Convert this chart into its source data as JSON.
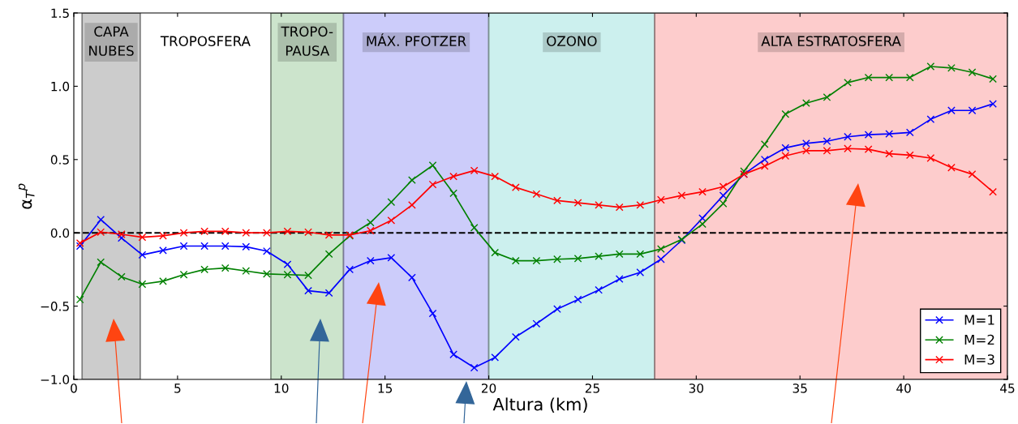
{
  "chart_data": {
    "type": "line",
    "xlabel": "Altura (km)",
    "ylabel": "α$_{T}$$^{p}$",
    "x": [
      0.3,
      1.3,
      2.3,
      3.3,
      4.3,
      5.3,
      6.3,
      7.3,
      8.3,
      9.3,
      10.3,
      11.3,
      12.3,
      13.3,
      14.3,
      15.3,
      16.3,
      17.3,
      18.3,
      19.3,
      20.3,
      21.3,
      22.3,
      23.3,
      24.3,
      25.3,
      26.3,
      27.3,
      28.3,
      29.3,
      30.3,
      31.3,
      32.3,
      33.3,
      34.3,
      35.3,
      36.3,
      37.3,
      38.3,
      39.3,
      40.3,
      41.3,
      42.3,
      43.3,
      44.3
    ],
    "series": [
      {
        "name": "M=1",
        "color": "#0000ff",
        "values": [
          -0.09,
          0.09,
          -0.035,
          -0.15,
          -0.12,
          -0.09,
          -0.09,
          -0.09,
          -0.095,
          -0.125,
          -0.215,
          -0.395,
          -0.41,
          -0.25,
          -0.19,
          -0.17,
          -0.305,
          -0.55,
          -0.83,
          -0.92,
          -0.85,
          -0.71,
          -0.62,
          -0.52,
          -0.455,
          -0.39,
          -0.315,
          -0.27,
          -0.18,
          -0.05,
          0.1,
          0.255,
          0.4,
          0.5,
          0.58,
          0.61,
          0.625,
          0.655,
          0.67,
          0.675,
          0.685,
          0.775,
          0.835,
          0.835,
          0.88
        ]
      },
      {
        "name": "M=2",
        "color": "#008000",
        "values": [
          -0.455,
          -0.2,
          -0.3,
          -0.35,
          -0.33,
          -0.285,
          -0.25,
          -0.24,
          -0.26,
          -0.28,
          -0.285,
          -0.29,
          -0.145,
          -0.02,
          0.07,
          0.21,
          0.36,
          0.46,
          0.27,
          0.035,
          -0.135,
          -0.19,
          -0.19,
          -0.18,
          -0.175,
          -0.16,
          -0.145,
          -0.145,
          -0.11,
          -0.045,
          0.06,
          0.2,
          0.42,
          0.605,
          0.81,
          0.885,
          0.925,
          1.025,
          1.06,
          1.06,
          1.06,
          1.135,
          1.125,
          1.095,
          1.05
        ]
      },
      {
        "name": "M=3",
        "color": "#ff0000",
        "values": [
          -0.07,
          0.005,
          -0.01,
          -0.03,
          -0.02,
          0.0,
          0.01,
          0.01,
          0.0,
          0.0,
          0.01,
          0.005,
          -0.015,
          -0.015,
          0.015,
          0.085,
          0.19,
          0.33,
          0.385,
          0.425,
          0.385,
          0.31,
          0.265,
          0.22,
          0.205,
          0.19,
          0.175,
          0.19,
          0.225,
          0.255,
          0.28,
          0.315,
          0.4,
          0.455,
          0.525,
          0.56,
          0.56,
          0.575,
          0.57,
          0.54,
          0.53,
          0.51,
          0.445,
          0.4,
          0.28
        ]
      }
    ],
    "xlim": [
      0,
      45
    ],
    "xticks": [
      0,
      5,
      10,
      15,
      20,
      25,
      30,
      35,
      40,
      45
    ],
    "ylim": [
      -1.0,
      1.5
    ],
    "yticks": [
      {
        "value": -1.0,
        "label": "−1.0"
      },
      {
        "value": -0.5,
        "label": "−0.5"
      },
      {
        "value": 0.0,
        "label": "0.0"
      },
      {
        "value": 0.5,
        "label": "0.5"
      },
      {
        "value": 1.0,
        "label": "1.0"
      },
      {
        "value": 1.5,
        "label": "1.5"
      }
    ],
    "ref_lines": [
      {
        "axis": "y",
        "value": 0,
        "label": null,
        "color": "#000000",
        "line_style": "dashed"
      }
    ],
    "bands": [
      {
        "axis": "x",
        "from": 0.4,
        "to": 3.2,
        "label": "CAPA\nNUBES",
        "color": "#cccccc"
      },
      {
        "axis": "x",
        "from": 9.5,
        "to": 13.0,
        "label": "TROPO-\nPAUSA",
        "color": "#cce4cc"
      },
      {
        "axis": "x",
        "from": 13.0,
        "to": 20.0,
        "label": "MÁX. PFOTZER",
        "color": "#ccccfa"
      },
      {
        "axis": "x",
        "from": 20.0,
        "to": 28.0,
        "label": "OZONO",
        "color": "#ccf0ee"
      },
      {
        "axis": "x",
        "from": 28.0,
        "to": 45.0,
        "label": "ALTA ESTRATOSFERA",
        "color": "#fdcccc"
      }
    ],
    "annotations": [
      "TROPOSFERA"
    ],
    "marker": "cross",
    "grid": false,
    "legend": "bottom right"
  }
}
